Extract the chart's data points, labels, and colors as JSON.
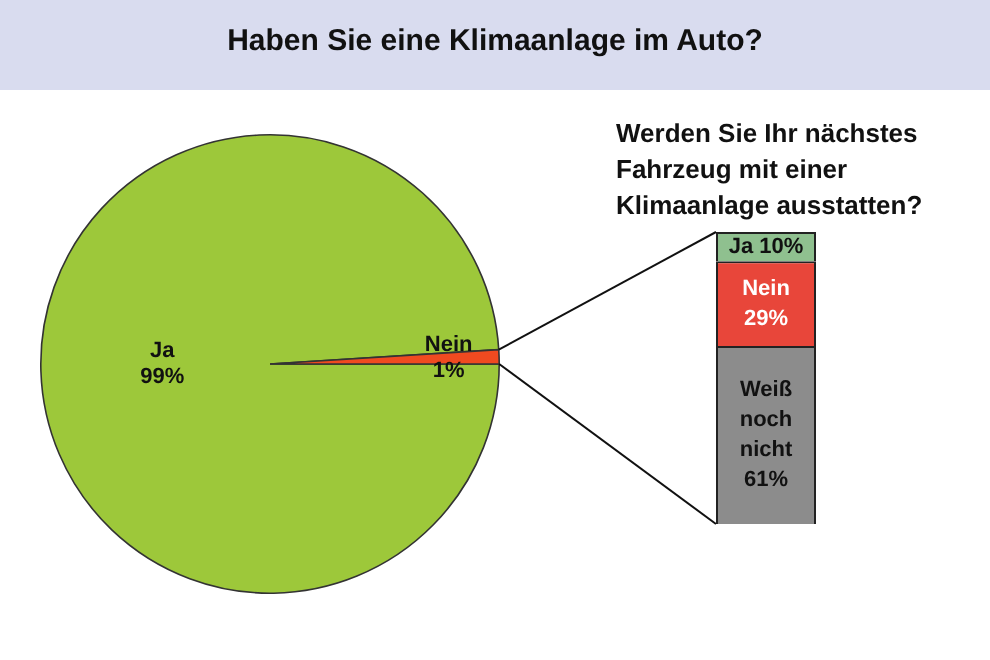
{
  "chart_data": [
    {
      "type": "pie",
      "title": "Haben Sie eine Klimaanlage im Auto?",
      "categories": [
        "Ja",
        "Nein"
      ],
      "values": [
        99,
        1
      ],
      "colors": [
        "#9dc83a",
        "#f04a20"
      ],
      "value_labels": [
        "99%",
        "1%"
      ],
      "legend": false
    },
    {
      "type": "bar",
      "title": "Werden Sie Ihr nächstes Fahrzeug mit einer Klimaanlage ausstatten?",
      "categories": [
        null
      ],
      "stacked": true,
      "ylim": [
        0,
        100
      ],
      "tick_labels": false,
      "legend": false,
      "series": [
        {
          "name": "Weiß noch nicht",
          "color": "#8c8c8c",
          "values": [
            61
          ],
          "value_labels": [
            "61%"
          ]
        },
        {
          "name": "Nein",
          "color": "#e8463a",
          "values": [
            29
          ],
          "value_labels": [
            "29%"
          ]
        },
        {
          "name": "Ja",
          "color": "#8fc08f",
          "values": [
            10
          ],
          "value_labels": [
            "10%"
          ]
        }
      ]
    }
  ]
}
